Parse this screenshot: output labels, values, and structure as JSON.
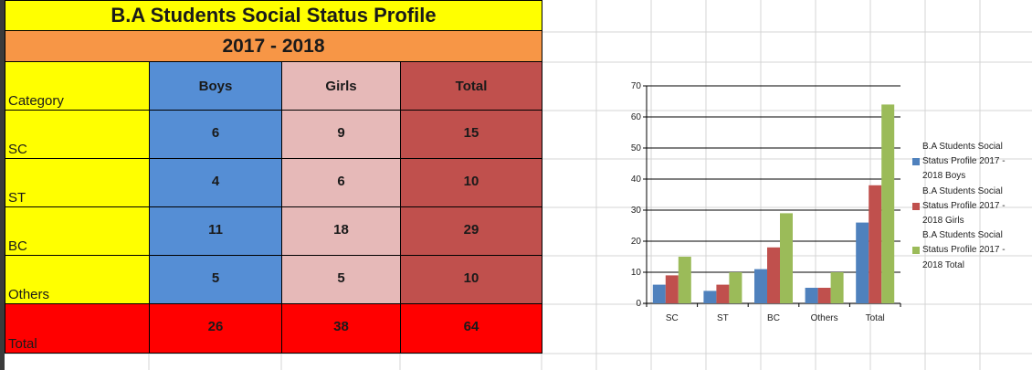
{
  "sheet": {
    "title": "B.A Students Social Status Profile",
    "year": "2017 - 2018",
    "header": {
      "category": "Category",
      "boys": "Boys",
      "girls": "Girls",
      "total": "Total"
    },
    "rows": [
      {
        "category": "SC",
        "boys": "6",
        "girls": "9",
        "total": "15"
      },
      {
        "category": "ST",
        "boys": "4",
        "girls": "6",
        "total": "10"
      },
      {
        "category": "BC",
        "boys": "11",
        "girls": "18",
        "total": "29"
      },
      {
        "category": "Others",
        "boys": "5",
        "girls": "5",
        "total": "10"
      },
      {
        "category": "Total",
        "boys": "26",
        "girls": "38",
        "total": "64"
      }
    ],
    "colors": {
      "title": "#ffff00",
      "year": "#f79646",
      "category": "#ffff00",
      "boys": "#558ed5",
      "girls": "#e6b9b8",
      "total": "#c0504d",
      "total_row": "#ff0000"
    }
  },
  "chart_data": {
    "type": "bar",
    "categories": [
      "SC",
      "ST",
      "BC",
      "Others",
      "Total"
    ],
    "series": [
      {
        "name": "B.A Students Social Status Profile 2017 - 2018 Boys",
        "values": [
          6,
          4,
          11,
          5,
          26
        ],
        "color": "#4f81bd"
      },
      {
        "name": "B.A Students Social Status Profile 2017 - 2018 Girls",
        "values": [
          9,
          6,
          18,
          5,
          38
        ],
        "color": "#c0504d"
      },
      {
        "name": "B.A Students Social Status Profile 2017 - 2018 Total",
        "values": [
          15,
          10,
          29,
          10,
          64
        ],
        "color": "#9bbb59"
      }
    ],
    "yticks": [
      "0",
      "10",
      "20",
      "30",
      "40",
      "50",
      "60",
      "70"
    ],
    "ylim": [
      0,
      70
    ],
    "grid": true,
    "legend_position": "right",
    "title": "",
    "xlabel": "",
    "ylabel": ""
  }
}
